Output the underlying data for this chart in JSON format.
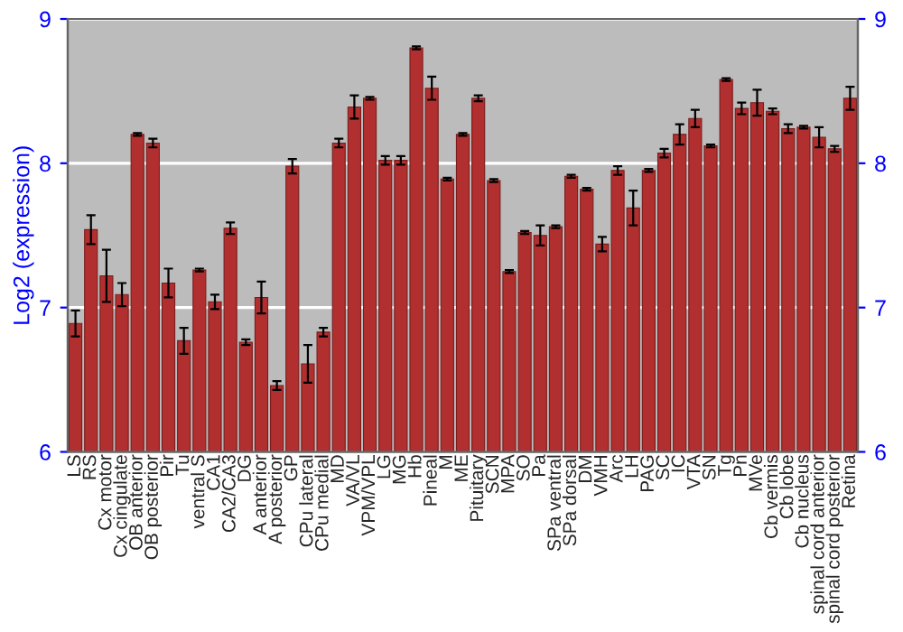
{
  "chart_data": {
    "type": "bar",
    "ylabel": "Log2 (expression)",
    "categories": [
      "LS",
      "RS",
      "Cx motor",
      "Cx cingulate",
      "OB anterior",
      "OB posterior",
      "Pir",
      "Tu",
      "ventral S",
      "CA1",
      "CA2/CA3",
      "DG",
      "A anterior",
      "A posterior",
      "GP",
      "CPu lateral",
      "CPu medial",
      "MD",
      "VA/VL",
      "VPM/VPL",
      "LG",
      "MG",
      "Hb",
      "Pineal",
      "M",
      "ME",
      "Pituitary",
      "SCN",
      "MPA",
      "SO",
      "Pa",
      "SPa ventral",
      "SPa dorsal",
      "DM",
      "VMH",
      "Arc",
      "LH",
      "PAG",
      "SC",
      "IC",
      "VTA",
      "SN",
      "Tg",
      "Pn",
      "MVe",
      "Cb vermis",
      "Cb lobe",
      "Cb nucleus",
      "spinal cord anterior",
      "spinal cord posterior",
      "Retina"
    ],
    "series": [
      {
        "color": "#b22f2f",
        "values": [
          6.89,
          7.54,
          7.22,
          7.09,
          8.2,
          8.14,
          7.17,
          6.77,
          7.26,
          7.04,
          7.55,
          6.76,
          7.07,
          6.46,
          7.98,
          6.61,
          6.83,
          8.14,
          8.39,
          8.45,
          8.02,
          8.02,
          8.8,
          8.52,
          7.89,
          8.2,
          8.45,
          7.88,
          7.25,
          7.52,
          7.5,
          7.56,
          7.91,
          7.82,
          7.44,
          7.95,
          7.69,
          7.95,
          8.07,
          8.2,
          8.31,
          8.12,
          8.58,
          8.38,
          8.42,
          8.36,
          8.24,
          8.25,
          8.18,
          8.1,
          8.45
        ],
        "errors": [
          0.09,
          0.1,
          0.18,
          0.08,
          0.01,
          0.03,
          0.1,
          0.09,
          0.01,
          0.05,
          0.04,
          0.02,
          0.11,
          0.03,
          0.05,
          0.13,
          0.03,
          0.03,
          0.08,
          0.01,
          0.03,
          0.03,
          0.01,
          0.08,
          0.01,
          0.01,
          0.02,
          0.01,
          0.01,
          0.01,
          0.07,
          0.01,
          0.01,
          0.01,
          0.05,
          0.03,
          0.12,
          0.01,
          0.03,
          0.07,
          0.06,
          0.01,
          0.01,
          0.04,
          0.09,
          0.02,
          0.03,
          0.01,
          0.07,
          0.02,
          0.08
        ]
      }
    ],
    "ylim": [
      6,
      9
    ],
    "yticks": [
      6,
      7,
      8,
      9
    ],
    "y2lim": [
      6,
      9
    ],
    "y2ticks": [
      6,
      7,
      8,
      9
    ],
    "grid": "y",
    "legend": false
  }
}
